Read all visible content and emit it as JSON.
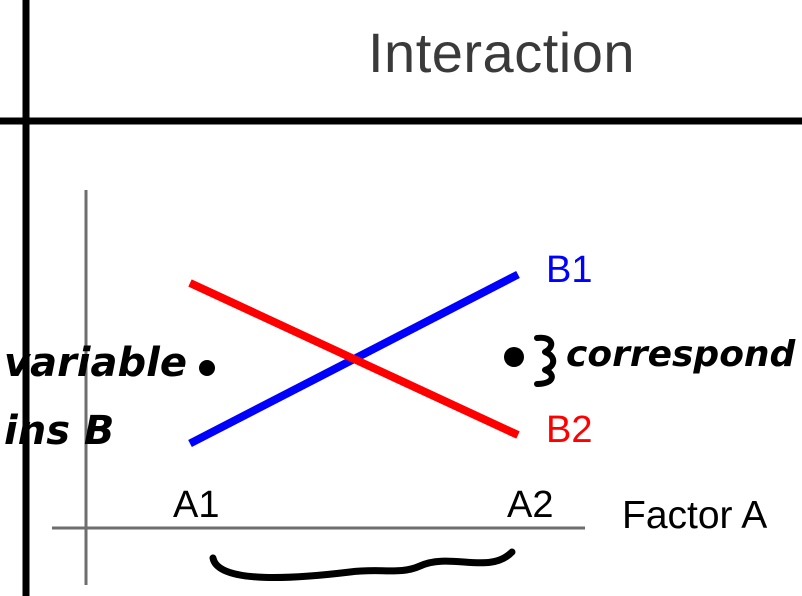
{
  "title": "Interaction",
  "chart_data": {
    "type": "line",
    "categories": [
      "A1",
      "A2"
    ],
    "xlabel": "Factor A",
    "series": [
      {
        "name": "B1",
        "values": [
          1,
          3
        ],
        "color": "#0000ff"
      },
      {
        "name": "B2",
        "values": [
          2.9,
          1.1
        ],
        "color": "#ff0000"
      }
    ],
    "ylim": [
      0,
      4
    ],
    "grid": false
  },
  "annotations": {
    "left_line1": "variable",
    "left_line2": "ins B",
    "right_text": "correspond"
  }
}
